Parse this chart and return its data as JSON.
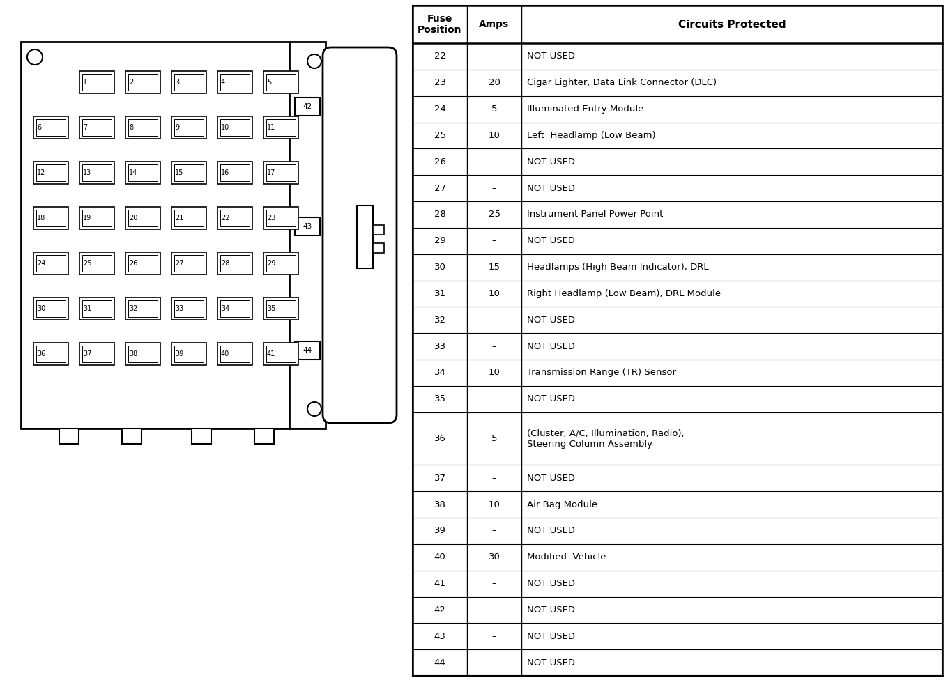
{
  "bg_color": "#ffffff",
  "table_data": [
    [
      "22",
      "–",
      "NOT USED"
    ],
    [
      "23",
      "20",
      "Cigar Lighter, Data Link Connector (DLC)"
    ],
    [
      "24",
      "5",
      "Illuminated Entry Module"
    ],
    [
      "25",
      "10",
      "Left  Headlamp (Low Beam)"
    ],
    [
      "26",
      "–",
      "NOT USED"
    ],
    [
      "27",
      "–",
      "NOT USED"
    ],
    [
      "28",
      "25",
      "Instrument Panel Power Point"
    ],
    [
      "29",
      "–",
      "NOT USED"
    ],
    [
      "30",
      "15",
      "Headlamps (High Beam Indicator), DRL"
    ],
    [
      "31",
      "10",
      "Right Headlamp (Low Beam), DRL Module"
    ],
    [
      "32",
      "–",
      "NOT USED"
    ],
    [
      "33",
      "–",
      "NOT USED"
    ],
    [
      "34",
      "10",
      "Transmission Range (TR) Sensor"
    ],
    [
      "35",
      "–",
      "NOT USED"
    ],
    [
      "36",
      "5",
      "(Cluster, A/C, Illumination, Radio),\nSteering Column Assembly"
    ],
    [
      "37",
      "–",
      "NOT USED"
    ],
    [
      "38",
      "10",
      "Air Bag Module"
    ],
    [
      "39",
      "–",
      "NOT USED"
    ],
    [
      "40",
      "30",
      "Modified  Vehicle"
    ],
    [
      "41",
      "–",
      "NOT USED"
    ],
    [
      "42",
      "–",
      "NOT USED"
    ],
    [
      "43",
      "–",
      "NOT USED"
    ],
    [
      "44",
      "–",
      "NOT USED"
    ]
  ],
  "fuse_rows": [
    [
      null,
      1,
      2,
      3,
      4,
      5
    ],
    [
      6,
      7,
      8,
      9,
      10,
      11
    ],
    [
      12,
      13,
      14,
      15,
      16,
      17
    ],
    [
      18,
      19,
      20,
      21,
      22,
      23
    ],
    [
      24,
      25,
      26,
      27,
      28,
      29
    ],
    [
      30,
      31,
      32,
      33,
      34,
      35
    ],
    [
      36,
      37,
      38,
      39,
      40,
      41
    ]
  ]
}
